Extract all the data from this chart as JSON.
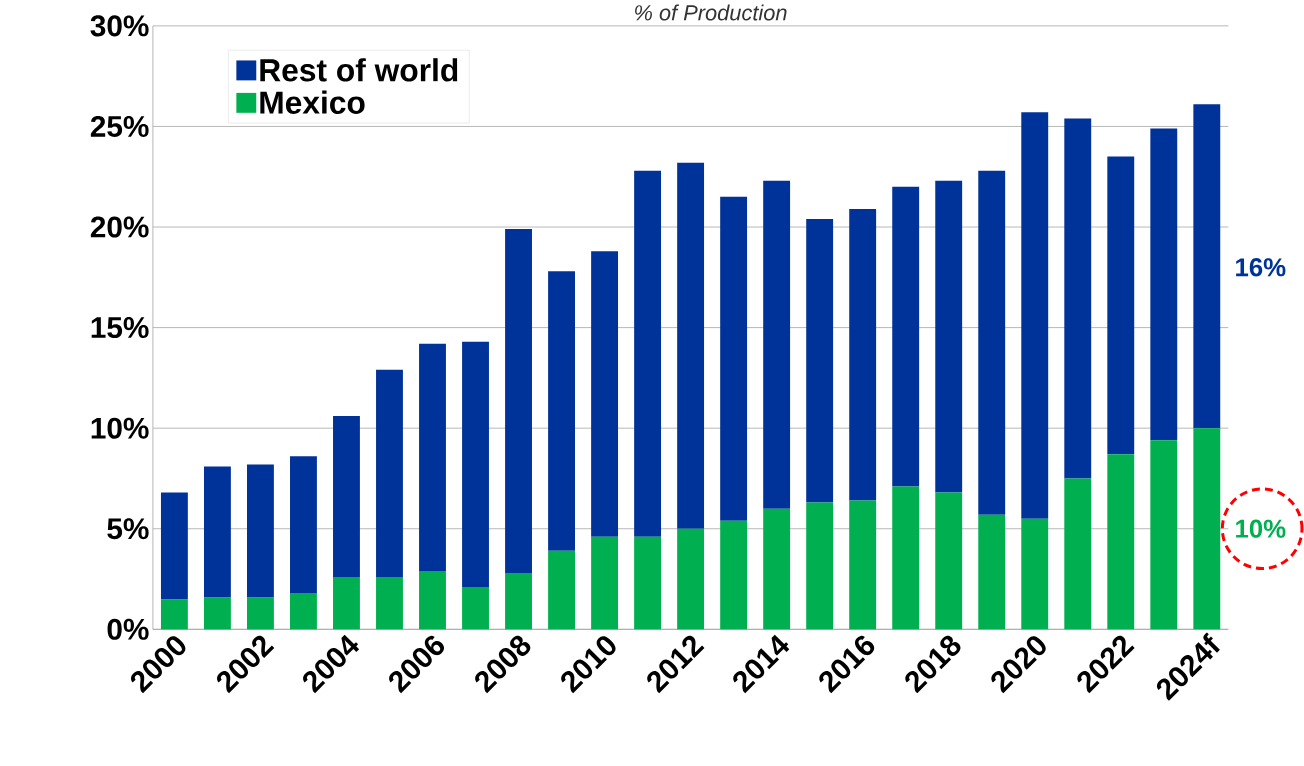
{
  "chart_data": {
    "type": "bar",
    "stacked": true,
    "title": "% of Production",
    "categories": [
      "2000",
      null,
      "2002",
      null,
      "2004",
      null,
      "2006",
      null,
      "2008",
      null,
      "2010",
      null,
      "2012",
      null,
      "2014",
      null,
      "2016",
      null,
      "2018",
      null,
      "2020",
      null,
      "2022",
      null,
      "2024f"
    ],
    "series": [
      {
        "name": "Mexico",
        "color": "#00b050",
        "values": [
          1.5,
          1.6,
          1.6,
          1.8,
          2.6,
          2.6,
          2.9,
          2.1,
          2.8,
          3.9,
          4.6,
          4.6,
          5.0,
          5.4,
          6.0,
          6.3,
          6.4,
          7.1,
          6.8,
          5.7,
          5.5,
          7.5,
          8.7,
          9.4,
          10.0
        ]
      },
      {
        "name": "Rest of world",
        "color": "#003399",
        "values": [
          5.3,
          6.5,
          6.6,
          6.8,
          8.0,
          10.3,
          11.3,
          12.2,
          17.1,
          13.9,
          14.2,
          18.2,
          18.2,
          16.1,
          16.3,
          14.1,
          14.5,
          14.9,
          15.5,
          17.1,
          20.2,
          17.9,
          14.8,
          15.5,
          16.1
        ]
      }
    ],
    "ylim": [
      0,
      30
    ],
    "yticks": [
      {
        "value": 0,
        "label": "0%"
      },
      {
        "value": 5,
        "label": "5%"
      },
      {
        "value": 10,
        "label": "10%"
      },
      {
        "value": 15,
        "label": "15%"
      },
      {
        "value": 20,
        "label": "20%"
      },
      {
        "value": 25,
        "label": "25%"
      },
      {
        "value": 30,
        "label": "30%"
      }
    ],
    "grid": "y",
    "legend": "top left",
    "annotations": [
      {
        "text": "16%",
        "x": "2024f",
        "y": 18
      },
      {
        "text": "10%",
        "x": "2024f",
        "y": 5
      }
    ]
  }
}
